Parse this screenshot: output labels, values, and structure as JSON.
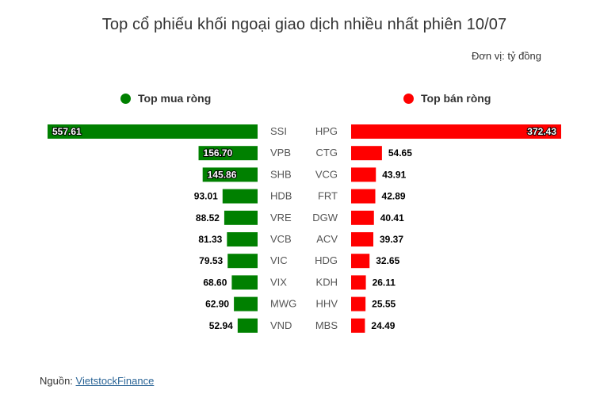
{
  "title": "Top cổ phiếu khối ngoại giao dịch nhiều nhất phiên 10/07",
  "unit": "Đơn vị: tỷ đồng",
  "source": {
    "prefix": "Nguồn: ",
    "link_text": "VietstockFinance"
  },
  "colors": {
    "buy": "#008000",
    "sell": "#ff0000"
  },
  "chart_data": [
    {
      "type": "bar",
      "orientation": "horizontal",
      "direction": "leftward",
      "legend": "Top mua ròng",
      "categories": [
        "SSI",
        "VPB",
        "SHB",
        "HDB",
        "VRE",
        "VCB",
        "VIC",
        "VIX",
        "MWG",
        "VND"
      ],
      "values": [
        557.61,
        156.7,
        145.86,
        93.01,
        88.52,
        81.33,
        79.53,
        68.6,
        62.9,
        52.94
      ],
      "value_labels": [
        "557.61",
        "156.70",
        "145.86",
        "93.01",
        "88.52",
        "81.33",
        "79.53",
        "68.60",
        "62.90",
        "52.94"
      ],
      "color": "#008000"
    },
    {
      "type": "bar",
      "orientation": "horizontal",
      "direction": "rightward",
      "legend": "Top bán ròng",
      "categories": [
        "HPG",
        "CTG",
        "VCG",
        "FRT",
        "DGW",
        "ACV",
        "HDG",
        "KDH",
        "HHV",
        "MBS"
      ],
      "values": [
        372.43,
        54.65,
        43.91,
        42.89,
        40.41,
        39.37,
        32.65,
        26.11,
        25.55,
        24.49
      ],
      "value_labels": [
        "372.43",
        "54.65",
        "43.91",
        "42.89",
        "40.41",
        "39.37",
        "32.65",
        "26.11",
        "25.55",
        "24.49"
      ],
      "color": "#ff0000"
    }
  ]
}
